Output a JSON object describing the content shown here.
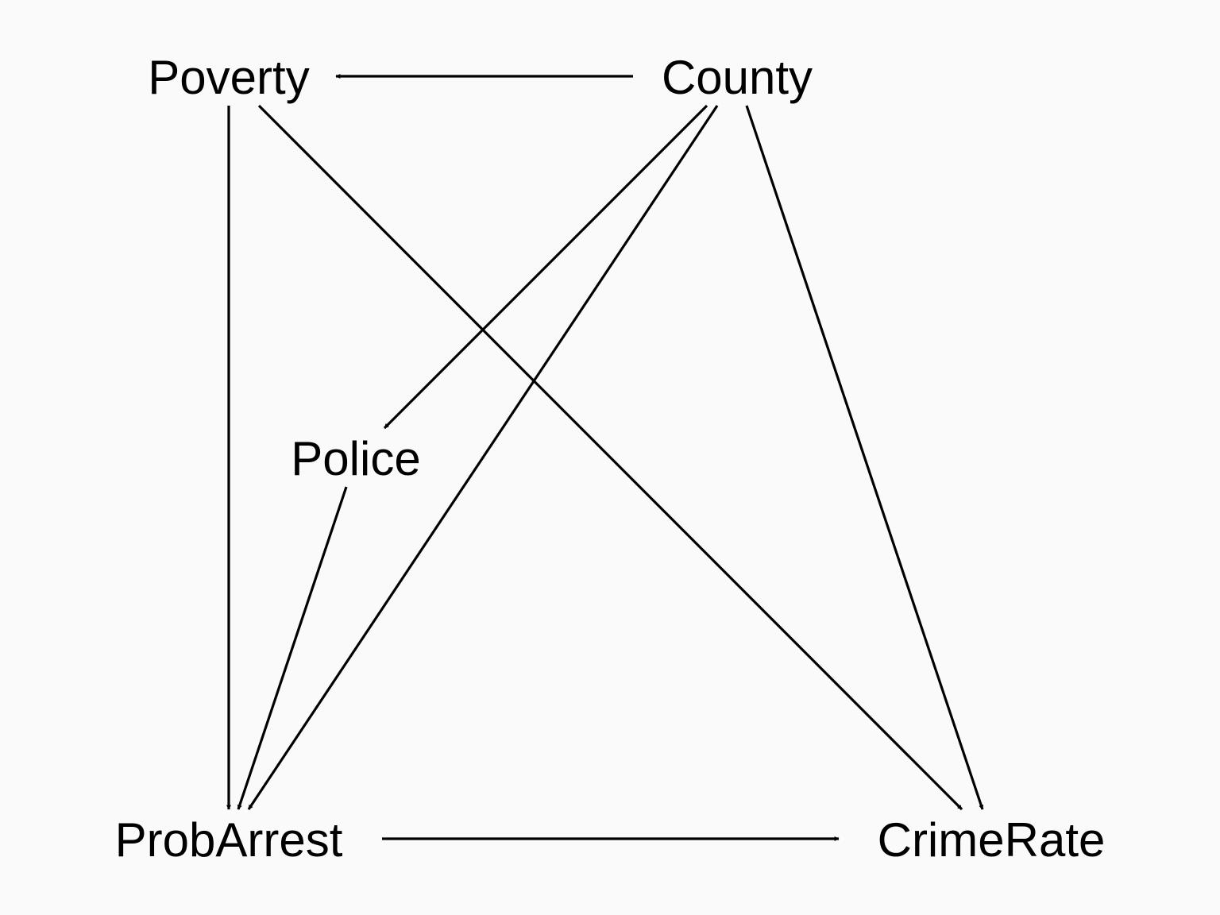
{
  "diagram": {
    "type": "directed-acyclic-graph",
    "background_color": "#fafafa",
    "ink_color": "#000000",
    "nodes": [
      {
        "id": "poverty",
        "label": "Poverty"
      },
      {
        "id": "county",
        "label": "County"
      },
      {
        "id": "police",
        "label": "Police"
      },
      {
        "id": "probarrest",
        "label": "ProbArrest"
      },
      {
        "id": "crimerate",
        "label": "CrimeRate"
      }
    ],
    "edges": [
      {
        "from": "county",
        "to": "poverty"
      },
      {
        "from": "county",
        "to": "police"
      },
      {
        "from": "county",
        "to": "probarrest"
      },
      {
        "from": "county",
        "to": "crimerate"
      },
      {
        "from": "poverty",
        "to": "probarrest"
      },
      {
        "from": "poverty",
        "to": "crimerate"
      },
      {
        "from": "police",
        "to": "probarrest"
      },
      {
        "from": "probarrest",
        "to": "crimerate"
      }
    ]
  }
}
